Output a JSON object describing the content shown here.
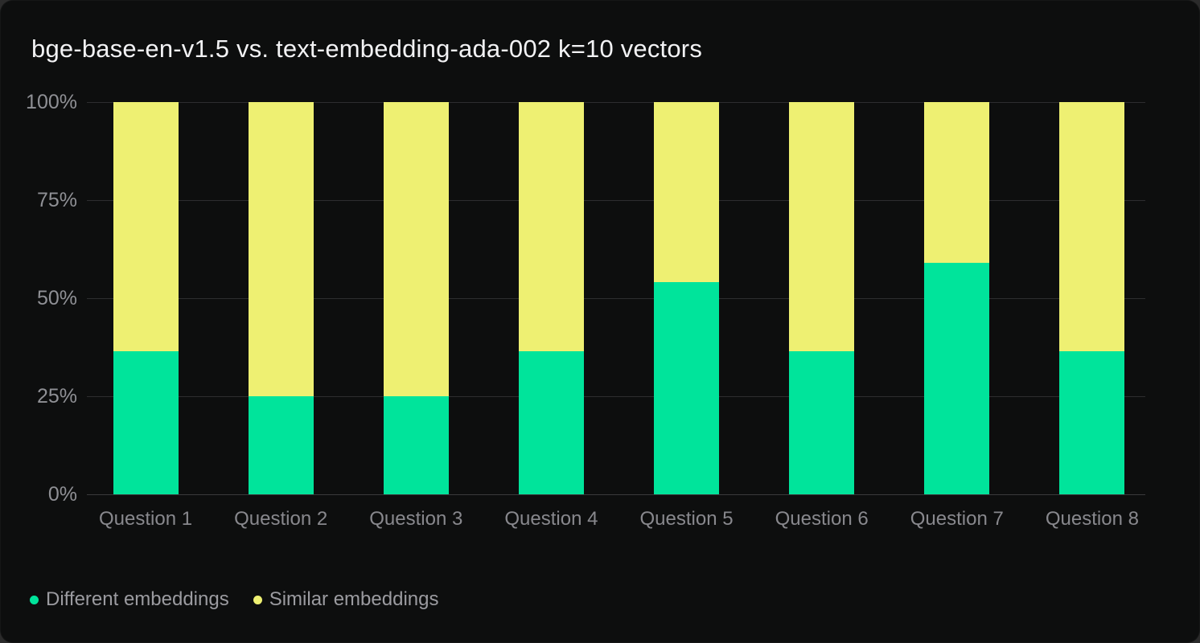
{
  "title": "bge-base-en-v1.5 vs. text-embedding-ada-002 k=10 vectors",
  "colors": {
    "background_outer": "#2b2b2b",
    "card_background": "#0d0e0e",
    "title_text": "#f2f2f4",
    "axis_label_text": "#8f9095",
    "gridline": "#2d2d2f",
    "different_series": "#00e49b",
    "similar_series": "#eef072"
  },
  "legend": {
    "items": [
      {
        "label": "Different embeddings",
        "color": "#00e49b"
      },
      {
        "label": "Similar embeddings",
        "color": "#eef072"
      }
    ]
  },
  "chart_data": {
    "type": "bar",
    "stacked": true,
    "stack_unit": "percent",
    "title": "bge-base-en-v1.5 vs. text-embedding-ada-002 k=10 vectors",
    "categories": [
      "Question 1",
      "Question 2",
      "Question 3",
      "Question 4",
      "Question 5",
      "Question 6",
      "Question 7",
      "Question 8"
    ],
    "series": [
      {
        "name": "Different embeddings",
        "color": "#00e49b",
        "values": [
          36.5,
          25.0,
          25.0,
          36.5,
          54.2,
          36.5,
          59.1,
          36.5
        ]
      },
      {
        "name": "Similar embeddings",
        "color": "#eef072",
        "values": [
          63.5,
          75.0,
          75.0,
          63.5,
          45.8,
          63.5,
          40.9,
          63.5
        ]
      }
    ],
    "xlabel": "",
    "ylabel": "",
    "ylim": [
      0,
      100
    ],
    "y_ticks": [
      "0%",
      "25%",
      "50%",
      "75%",
      "100%"
    ],
    "grid": true,
    "legend_position": "bottom-left"
  }
}
